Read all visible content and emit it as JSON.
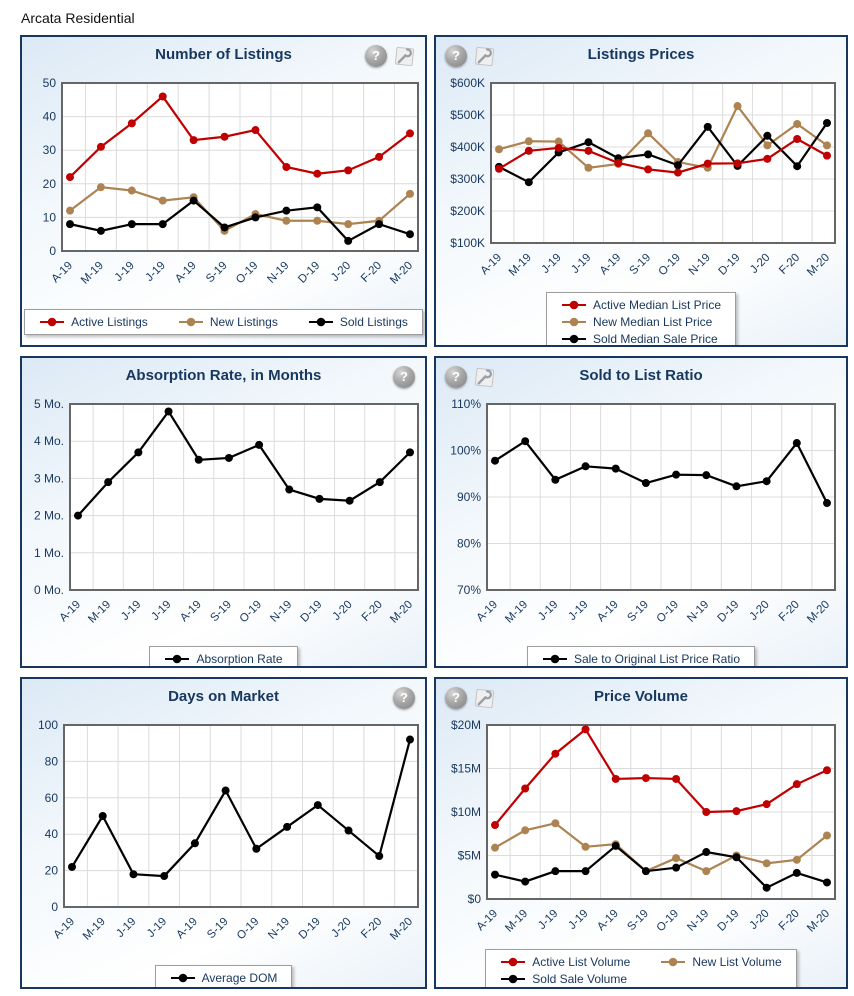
{
  "page_title": "Arcata Residential",
  "ui": {
    "help_glyph": "?"
  },
  "colors": {
    "accent_navy": "#17375E",
    "series_red": "#C00000",
    "series_tan": "#AE8352",
    "series_black": "#000000"
  },
  "chart_data": [
    {
      "type": "line",
      "title": "Number of Listings",
      "categories": [
        "A-19",
        "M-19",
        "J-19",
        "J-19",
        "A-19",
        "S-19",
        "O-19",
        "N-19",
        "D-19",
        "J-20",
        "F-20",
        "M-20"
      ],
      "ylim": [
        0,
        50
      ],
      "yticks": [
        {
          "v": 0,
          "label": "0"
        },
        {
          "v": 10,
          "label": "10"
        },
        {
          "v": 20,
          "label": "20"
        },
        {
          "v": 30,
          "label": "30"
        },
        {
          "v": 40,
          "label": "40"
        },
        {
          "v": 50,
          "label": "50"
        }
      ],
      "grid": true,
      "legend_position": "bottom",
      "series": [
        {
          "name": "Active Listings",
          "color": "#C00000",
          "values": [
            22,
            31,
            38,
            46,
            33,
            34,
            36,
            25,
            23,
            24,
            28,
            35
          ]
        },
        {
          "name": "New Listings",
          "color": "#AE8352",
          "values": [
            12,
            19,
            18,
            15,
            16,
            6,
            11,
            9,
            9,
            8,
            9,
            17
          ]
        },
        {
          "name": "Sold Listings",
          "color": "#000000",
          "values": [
            8,
            6,
            8,
            8,
            15,
            7,
            10,
            12,
            13,
            3,
            8,
            5
          ]
        }
      ],
      "legend_rows": [
        [
          "Active Listings",
          "New Listings",
          "Sold Listings"
        ]
      ],
      "icons": {
        "help": true,
        "settings": true,
        "position": "right"
      }
    },
    {
      "type": "line",
      "title": "Listings Prices",
      "categories": [
        "A-19",
        "M-19",
        "J-19",
        "J-19",
        "A-19",
        "S-19",
        "O-19",
        "N-19",
        "D-19",
        "J-20",
        "F-20",
        "M-20"
      ],
      "ylim": [
        100,
        600
      ],
      "yticks": [
        {
          "v": 100,
          "label": "$100K"
        },
        {
          "v": 200,
          "label": "$200K"
        },
        {
          "v": 300,
          "label": "$300K"
        },
        {
          "v": 400,
          "label": "$400K"
        },
        {
          "v": 500,
          "label": "$500K"
        },
        {
          "v": 600,
          "label": "$600K"
        }
      ],
      "grid": true,
      "legend_position": "bottom",
      "series": [
        {
          "name": "Active Median List Price",
          "color": "#C00000",
          "values": [
            332,
            388,
            397,
            388,
            350,
            330,
            320,
            348,
            349,
            363,
            425,
            373
          ]
        },
        {
          "name": "New Median List Price",
          "color": "#AE8352",
          "values": [
            393,
            418,
            417,
            335,
            347,
            443,
            353,
            335,
            528,
            405,
            472,
            405
          ]
        },
        {
          "name": "Sold Median Sale Price",
          "color": "#000000",
          "values": [
            338,
            290,
            383,
            415,
            365,
            377,
            343,
            463,
            341,
            435,
            340,
            475
          ]
        }
      ],
      "legend_rows": [
        [
          "Active Median List Price"
        ],
        [
          "New Median List Price"
        ],
        [
          "Sold Median Sale Price"
        ]
      ],
      "icons": {
        "help": true,
        "settings": true,
        "position": "left"
      }
    },
    {
      "type": "line",
      "title": "Absorption Rate, in Months",
      "categories": [
        "A-19",
        "M-19",
        "J-19",
        "J-19",
        "A-19",
        "S-19",
        "O-19",
        "N-19",
        "D-19",
        "J-20",
        "F-20",
        "M-20"
      ],
      "ylim": [
        0,
        5
      ],
      "yticks": [
        {
          "v": 0,
          "label": "0 Mo."
        },
        {
          "v": 1,
          "label": "1 Mo."
        },
        {
          "v": 2,
          "label": "2 Mo."
        },
        {
          "v": 3,
          "label": "3 Mo."
        },
        {
          "v": 4,
          "label": "4 Mo."
        },
        {
          "v": 5,
          "label": "5 Mo."
        }
      ],
      "grid": true,
      "legend_position": "bottom",
      "series": [
        {
          "name": "Absorption Rate",
          "color": "#000000",
          "values": [
            2.0,
            2.9,
            3.7,
            4.8,
            3.5,
            3.55,
            3.9,
            2.7,
            2.45,
            2.4,
            2.9,
            3.7
          ]
        }
      ],
      "legend_rows": [
        [
          "Absorption Rate"
        ]
      ],
      "icons": {
        "help": true,
        "settings": false,
        "position": "right"
      }
    },
    {
      "type": "line",
      "title": "Sold to List Ratio",
      "categories": [
        "A-19",
        "M-19",
        "J-19",
        "J-19",
        "A-19",
        "S-19",
        "O-19",
        "N-19",
        "D-19",
        "J-20",
        "F-20",
        "M-20"
      ],
      "ylim": [
        70,
        110
      ],
      "yticks": [
        {
          "v": 70,
          "label": "70%"
        },
        {
          "v": 80,
          "label": "80%"
        },
        {
          "v": 90,
          "label": "90%"
        },
        {
          "v": 100,
          "label": "100%"
        },
        {
          "v": 110,
          "label": "110%"
        }
      ],
      "grid": true,
      "legend_position": "bottom",
      "series": [
        {
          "name": "Sale to Original List Price Ratio",
          "color": "#000000",
          "values": [
            97.8,
            102,
            93.7,
            96.6,
            96.1,
            93.0,
            94.8,
            94.7,
            92.3,
            93.4,
            101.6,
            88.7
          ]
        }
      ],
      "legend_rows": [
        [
          "Sale to Original List Price Ratio"
        ]
      ],
      "icons": {
        "help": true,
        "settings": true,
        "position": "left"
      }
    },
    {
      "type": "line",
      "title": "Days on Market",
      "categories": [
        "A-19",
        "M-19",
        "J-19",
        "J-19",
        "A-19",
        "S-19",
        "O-19",
        "N-19",
        "D-19",
        "J-20",
        "F-20",
        "M-20"
      ],
      "ylim": [
        0,
        100
      ],
      "yticks": [
        {
          "v": 0,
          "label": "0"
        },
        {
          "v": 20,
          "label": "20"
        },
        {
          "v": 40,
          "label": "40"
        },
        {
          "v": 60,
          "label": "60"
        },
        {
          "v": 80,
          "label": "80"
        },
        {
          "v": 100,
          "label": "100"
        }
      ],
      "grid": true,
      "legend_position": "bottom",
      "series": [
        {
          "name": "Average DOM",
          "color": "#000000",
          "values": [
            22,
            50,
            18,
            17,
            35,
            64,
            32,
            44,
            56,
            42,
            28,
            92
          ]
        }
      ],
      "legend_rows": [
        [
          "Average DOM"
        ]
      ],
      "icons": {
        "help": true,
        "settings": false,
        "position": "right"
      }
    },
    {
      "type": "line",
      "title": "Price Volume",
      "categories": [
        "A-19",
        "M-19",
        "J-19",
        "J-19",
        "A-19",
        "S-19",
        "O-19",
        "N-19",
        "D-19",
        "J-20",
        "F-20",
        "M-20"
      ],
      "ylim": [
        0,
        20
      ],
      "yticks": [
        {
          "v": 0,
          "label": "$0"
        },
        {
          "v": 5,
          "label": "$5M"
        },
        {
          "v": 10,
          "label": "$10M"
        },
        {
          "v": 15,
          "label": "$15M"
        },
        {
          "v": 20,
          "label": "$20M"
        }
      ],
      "grid": true,
      "legend_position": "bottom",
      "series": [
        {
          "name": "Active List Volume",
          "color": "#C00000",
          "values": [
            8.5,
            12.7,
            16.7,
            19.5,
            13.8,
            13.9,
            13.8,
            10.0,
            10.1,
            10.9,
            13.2,
            14.8
          ]
        },
        {
          "name": "New List Volume",
          "color": "#AE8352",
          "values": [
            5.9,
            7.9,
            8.7,
            6.0,
            6.3,
            3.2,
            4.7,
            3.2,
            5.0,
            4.1,
            4.5,
            7.3
          ]
        },
        {
          "name": "Sold Sale Volume",
          "color": "#000000",
          "values": [
            2.8,
            2.0,
            3.2,
            3.2,
            6.1,
            3.2,
            3.6,
            5.4,
            4.8,
            1.3,
            3.0,
            1.9
          ]
        }
      ],
      "legend_rows": [
        [
          "Active List Volume",
          "New List Volume"
        ],
        [
          "Sold Sale Volume"
        ]
      ],
      "icons": {
        "help": true,
        "settings": true,
        "position": "left"
      }
    }
  ]
}
